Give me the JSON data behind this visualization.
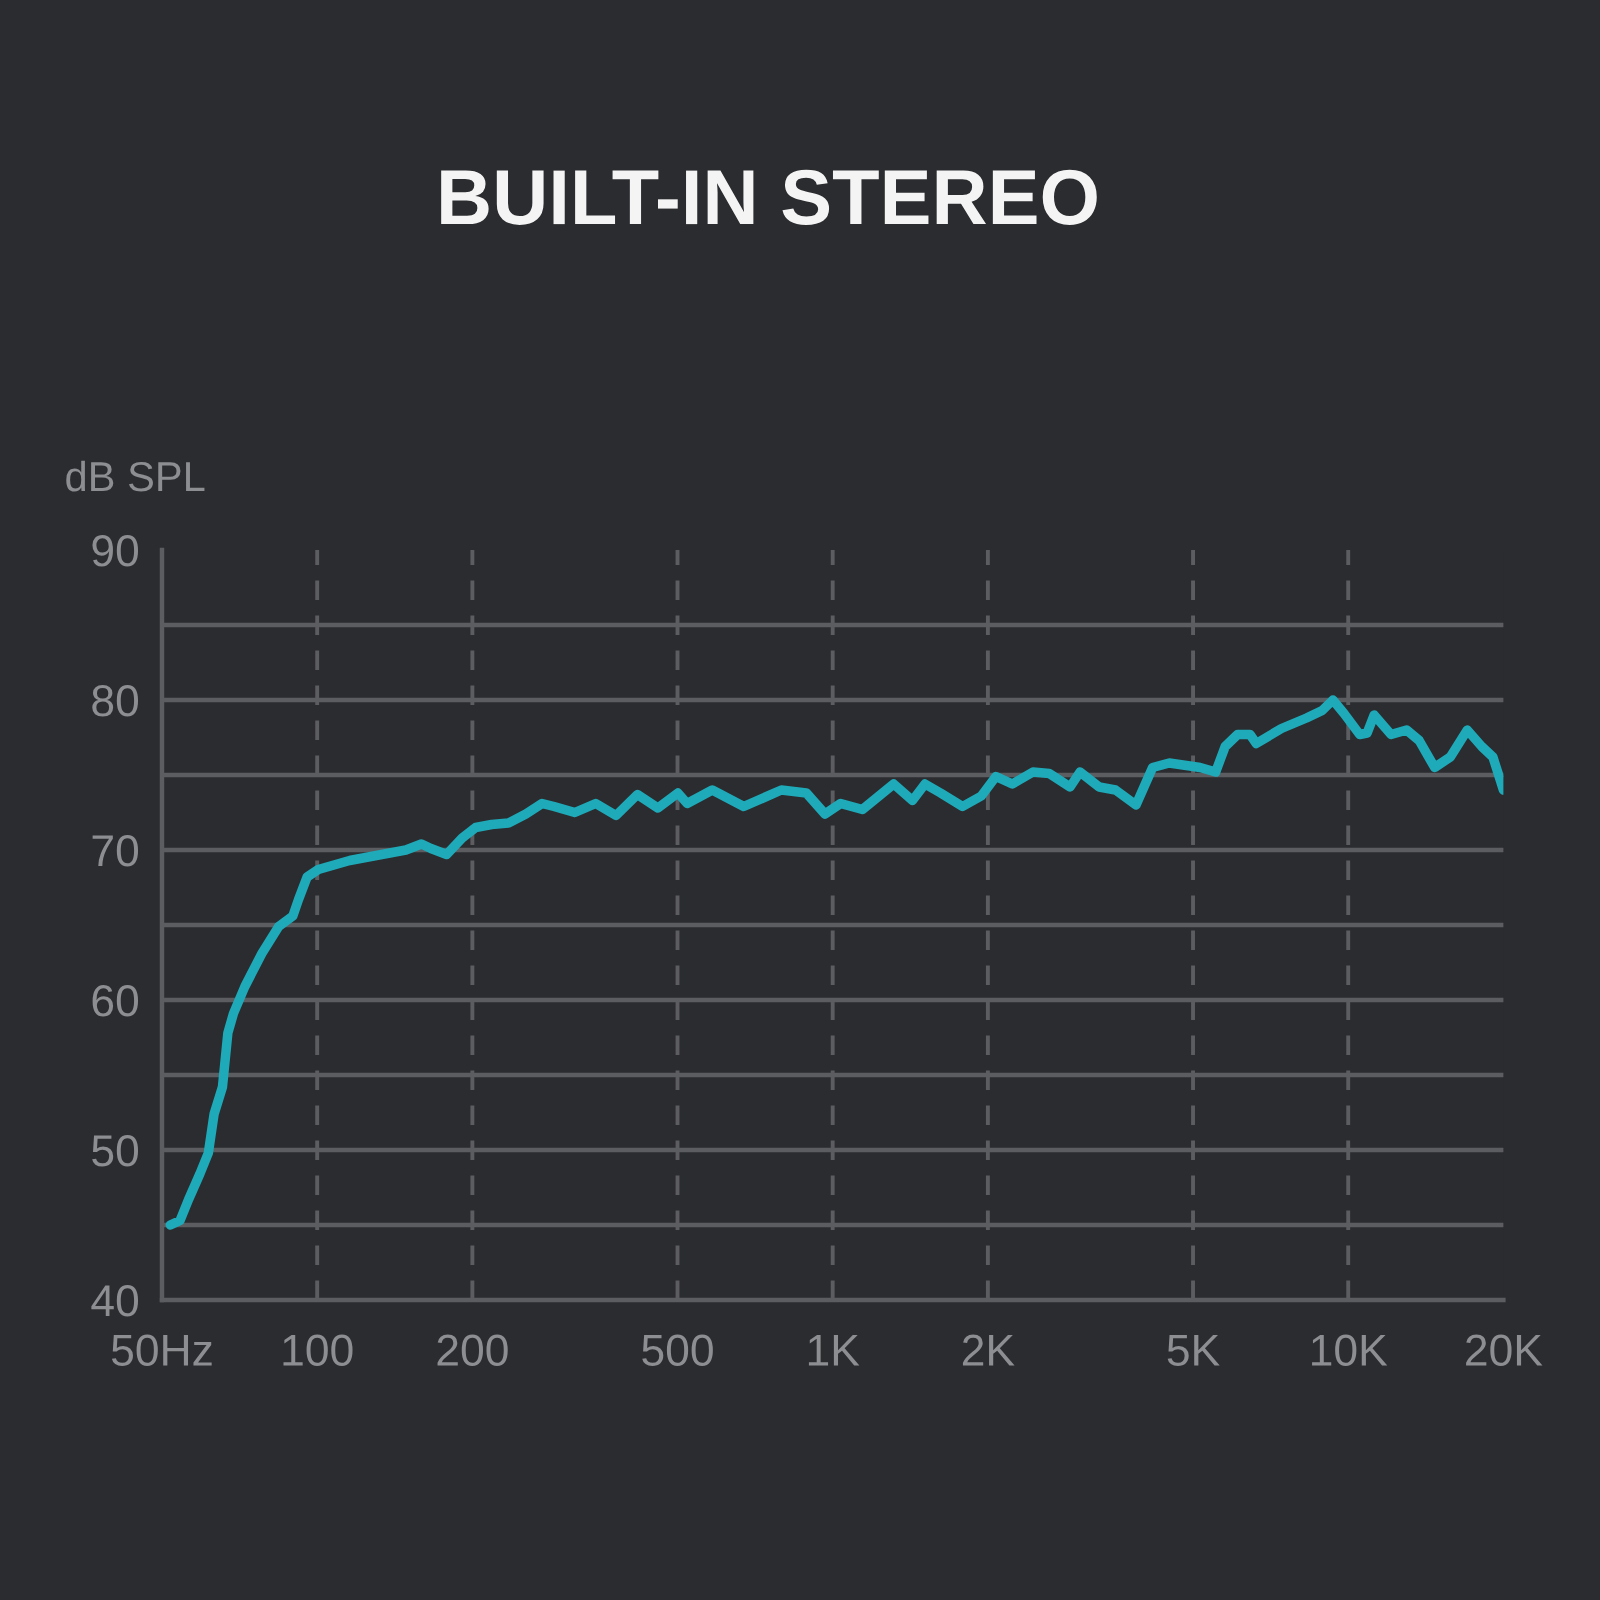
{
  "chart_data": {
    "type": "line",
    "title": "BUILT-IN STEREO",
    "ylabel": "dB SPL",
    "x": [
      51.9,
      54.2,
      56.3,
      59.2,
      61.5,
      63.1,
      65.5,
      67.1,
      68.8,
      72.4,
      78.1,
      84.2,
      89.7,
      92.0,
      95.6,
      100.5,
      115.6,
      148.6,
      159.3,
      166.2,
      178.3,
      191.1,
      203,
      218,
      235,
      254,
      273,
      288,
      316,
      347,
      380,
      418,
      458,
      501,
      522,
      584,
      672,
      795,
      889,
      966,
      1036,
      1142,
      1313,
      1428,
      1510,
      1619,
      1786,
      1942,
      2073,
      2231,
      2446,
      2631,
      2887,
      3018,
      3288,
      3537,
      3876,
      4174,
      4496,
      5161,
      5532,
      5772,
      6102,
      6450,
      6632,
      7422,
      8300,
      8903,
      9339,
      9815,
      10526,
      10882,
      11228,
      12108,
      12979,
      13729,
      14712,
      15780,
      17020,
      18154,
      19084,
      20000
    ],
    "series": [
      {
        "color": "#1eaab9",
        "values": [
          45.0,
          45.3,
          46.7,
          48.4,
          49.8,
          52.4,
          54.2,
          57.8,
          59.1,
          60.9,
          63.1,
          64.9,
          65.6,
          66.7,
          68.2,
          68.7,
          69.3,
          70.0,
          70.4,
          70.1,
          69.7,
          70.8,
          71.5,
          71.7,
          71.8,
          72.4,
          73.1,
          72.9,
          72.5,
          73.1,
          72.3,
          73.7,
          72.8,
          73.8,
          73.1,
          74.0,
          72.9,
          74.0,
          73.8,
          72.4,
          73.1,
          72.7,
          74.4,
          73.3,
          74.4,
          73.8,
          72.9,
          73.6,
          74.9,
          74.4,
          75.2,
          75.1,
          74.2,
          75.2,
          74.2,
          74.0,
          73.0,
          75.5,
          75.8,
          75.5,
          75.2,
          76.9,
          77.7,
          77.7,
          77.1,
          78.1,
          78.8,
          79.3,
          80.0,
          79.1,
          77.7,
          77.8,
          79.0,
          77.7,
          78.0,
          77.3,
          75.5,
          76.2,
          78.0,
          76.9,
          76.2,
          74.0
        ]
      }
    ],
    "xlim": [
      50,
      20000
    ],
    "xticks": [
      {
        "value": 50,
        "label": "50Hz"
      },
      100,
      200,
      500,
      {
        "value": 1000,
        "label": "1K"
      },
      {
        "value": 2000,
        "label": "2K"
      },
      {
        "value": 5000,
        "label": "5K"
      },
      {
        "value": 10000,
        "label": "10K"
      },
      {
        "value": 20000,
        "label": "20K"
      }
    ],
    "ylim": [
      40,
      90
    ],
    "yticks": [
      40,
      {
        "value": 45,
        "label": null
      },
      50,
      {
        "value": 55,
        "label": null
      },
      60,
      {
        "value": 65,
        "label": null
      },
      70,
      {
        "value": 75,
        "label": null
      },
      80,
      {
        "value": 85,
        "label": null
      },
      90
    ],
    "log": "x",
    "grid": true,
    "line_style": "solid",
    "marker": "none"
  }
}
